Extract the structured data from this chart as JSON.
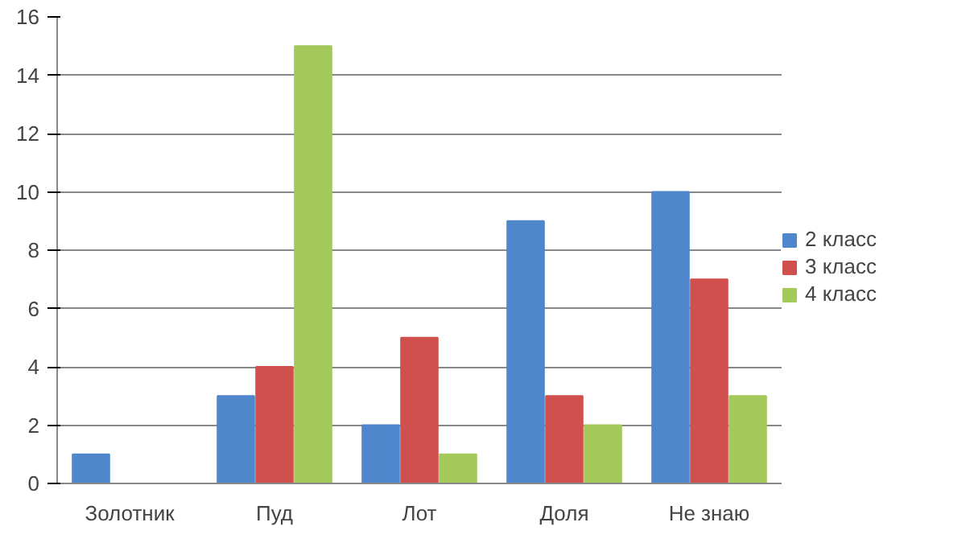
{
  "chart_data": {
    "type": "bar",
    "categories": [
      "Золотник",
      "Пуд",
      "Лот",
      "Доля",
      "Не знаю"
    ],
    "series": [
      {
        "name": "2 класс",
        "color": "#4f86cc",
        "values": [
          1,
          3,
          2,
          9,
          10
        ]
      },
      {
        "name": "3 класс",
        "color": "#d0504d",
        "values": [
          null,
          4,
          5,
          3,
          7
        ]
      },
      {
        "name": "4 класс",
        "color": "#a3c95b",
        "values": [
          null,
          15,
          1,
          2,
          3
        ]
      }
    ],
    "ylim": [
      0,
      16
    ],
    "yticks": [
      0,
      2,
      4,
      6,
      8,
      10,
      12,
      14,
      16
    ],
    "grid": "y",
    "legend": "right"
  }
}
